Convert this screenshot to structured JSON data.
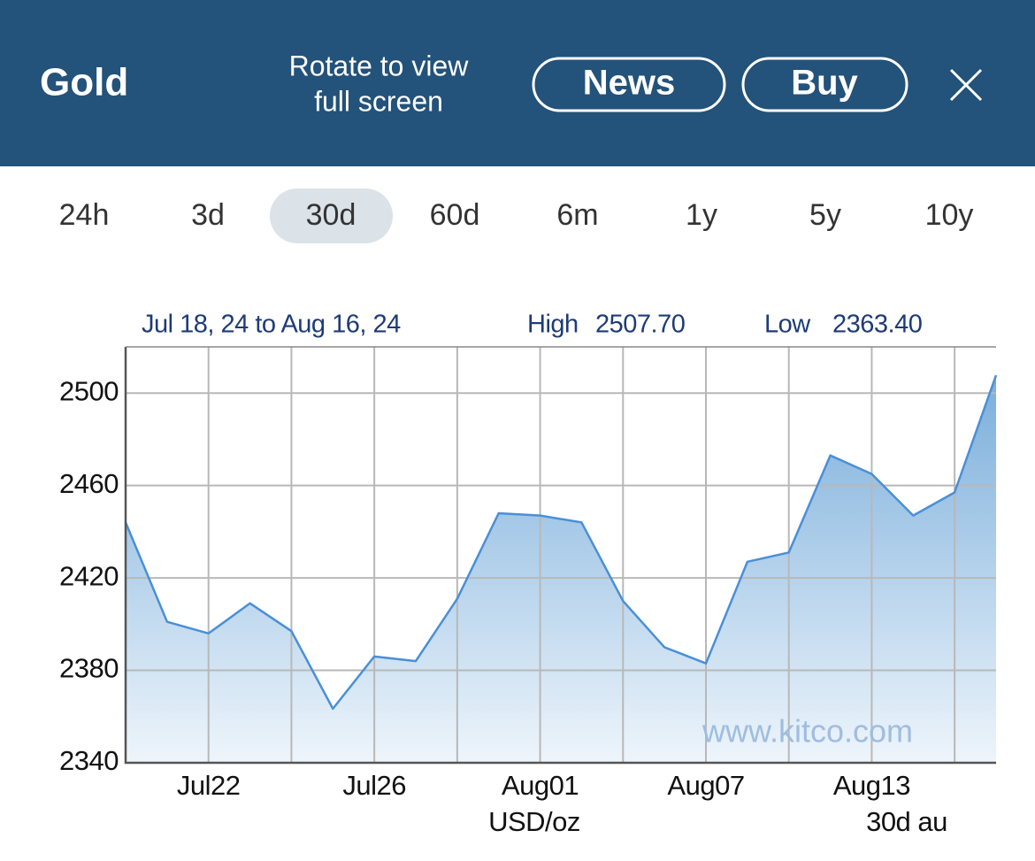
{
  "header": {
    "title": "Gold",
    "rotate_hint": [
      "Rotate to view",
      "full screen"
    ],
    "buttons": [
      "News",
      "Buy"
    ]
  },
  "tabs": {
    "items": [
      "24h",
      "3d",
      "30d",
      "60d",
      "6m",
      "1y",
      "5y",
      "10y"
    ],
    "selected": 2
  },
  "chart_data": {
    "type": "area",
    "subtitle": "Jul 18, 24 to Aug 16, 24",
    "high_label": "High",
    "high": "2507.70",
    "low_label": "Low",
    "low": "2363.40",
    "watermark": "www.kitco.com",
    "x_label": "USD/oz",
    "corner_label": "30d au",
    "categories": [
      null,
      null,
      "Jul22",
      null,
      null,
      null,
      "Jul26",
      null,
      null,
      null,
      "Aug01",
      null,
      null,
      null,
      "Aug07",
      null,
      null,
      null,
      "Aug13",
      null,
      null,
      null
    ],
    "values": [
      2444,
      2401,
      2396,
      2409,
      2397,
      2363.4,
      2386,
      2384,
      2411,
      2448,
      2447,
      2444,
      2410,
      2390,
      2383,
      2427,
      2431,
      2473,
      2465,
      2447,
      2457,
      2507.7
    ],
    "color": "#4a8fd8",
    "ylim": [
      2340,
      2520
    ],
    "yticks": [
      2340,
      2380,
      2420,
      2460,
      2500
    ],
    "grid": true
  }
}
